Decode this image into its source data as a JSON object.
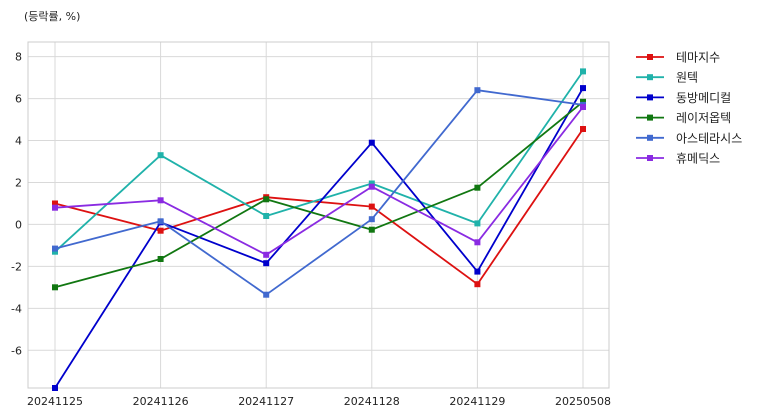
{
  "chart_data": {
    "type": "line",
    "unit_label": "(등락률, %)",
    "categories": [
      "20241125",
      "20241126",
      "20241127",
      "20241128",
      "20241129",
      "20250508"
    ],
    "ylim": [
      -7.8,
      8.7
    ],
    "yticks": [
      -6,
      -4,
      -2,
      0,
      2,
      4,
      6,
      8
    ],
    "grid": true,
    "legend_position": "right-outside-top",
    "series": [
      {
        "name": "테마지수",
        "color": "#dd1111",
        "values": [
          1.0,
          -0.3,
          1.3,
          0.85,
          -2.85,
          4.55
        ]
      },
      {
        "name": "원텍",
        "color": "#20b2aa",
        "values": [
          -1.3,
          3.3,
          0.4,
          1.95,
          0.05,
          7.3
        ]
      },
      {
        "name": "동방메디컬",
        "color": "#0000cc",
        "values": [
          -7.8,
          0.1,
          -1.85,
          3.9,
          -2.25,
          6.5
        ]
      },
      {
        "name": "레이저옵텍",
        "color": "#117711",
        "values": [
          -3.0,
          -1.65,
          1.2,
          -0.25,
          1.75,
          5.85
        ]
      },
      {
        "name": "아스테라시스",
        "color": "#4169cf",
        "values": [
          -1.15,
          0.15,
          -3.35,
          0.25,
          6.4,
          5.7
        ]
      },
      {
        "name": "휴메딕스",
        "color": "#8a2be2",
        "values": [
          0.8,
          1.15,
          -1.45,
          1.8,
          -0.85,
          5.6
        ]
      }
    ]
  }
}
